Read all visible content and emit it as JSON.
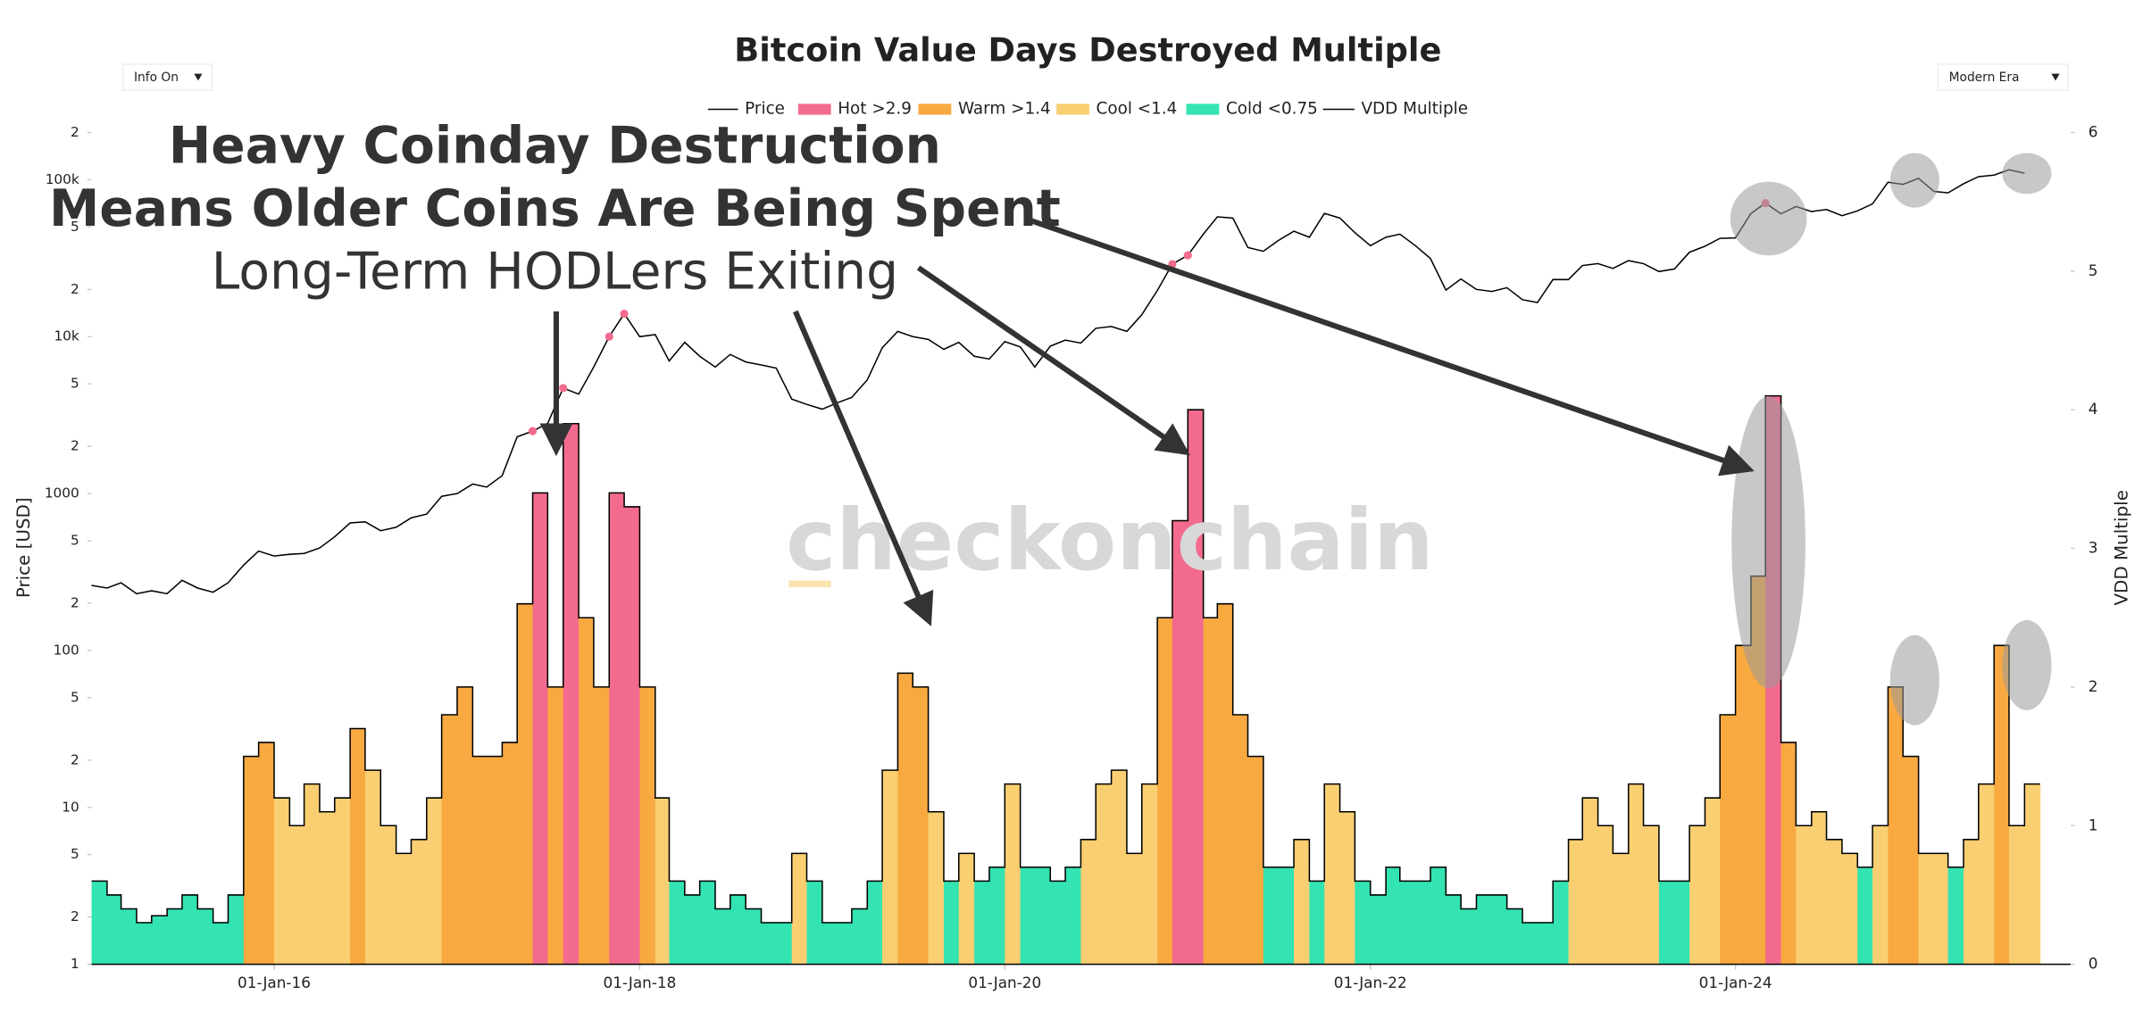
{
  "chart_data": {
    "type": "bar-line",
    "title": "Bitcoin Value Days Destroyed Multiple",
    "controls": [
      "Info On",
      "Modern Era"
    ],
    "annotations": [
      "Heavy Coinday Destruction",
      "Means Older Coins Are Being Spent",
      "Long-Term HODLers Exiting"
    ],
    "watermark": "checkonchain",
    "ylabel": "Price [USD]",
    "y2label": "VDD Multiple",
    "log_y": true,
    "xlim": [
      "2015-01-01",
      "2025-11-01"
    ],
    "xticks": [
      {
        "value": "2016-01-01",
        "label": "01-Jan-16"
      },
      {
        "value": "2018-01-01",
        "label": "01-Jan-18"
      },
      {
        "value": "2020-01-01",
        "label": "01-Jan-20"
      },
      {
        "value": "2022-01-01",
        "label": "01-Jan-22"
      },
      {
        "value": "2024-01-01",
        "label": "01-Jan-24"
      }
    ],
    "ylim": [
      1,
      200000
    ],
    "yticks": [
      1,
      2,
      5,
      10,
      {
        "value": 20,
        "label": "2"
      },
      {
        "value": 50,
        "label": "5"
      },
      100,
      {
        "value": 200,
        "label": "2"
      },
      {
        "value": 500,
        "label": "5"
      },
      1000,
      {
        "value": 2000,
        "label": "2"
      },
      {
        "value": 5000,
        "label": "5"
      },
      {
        "value": 10000,
        "label": "10k"
      },
      {
        "value": 20000,
        "label": "2"
      },
      {
        "value": 50000,
        "label": "5"
      },
      {
        "value": 100000,
        "label": "100k"
      },
      {
        "value": 200000,
        "label": "2"
      }
    ],
    "y2lim": [
      0,
      6
    ],
    "y2ticks": [
      0,
      1,
      2,
      3,
      4,
      5,
      6
    ],
    "bands": [
      {
        "name": "Hot >2.9",
        "color": "#f26b8e",
        "threshold": 2.9
      },
      {
        "name": "Warm >1.4",
        "color": "#f8a940",
        "threshold": 1.4
      },
      {
        "name": "Cool <1.4",
        "color": "#f9cf72",
        "threshold": 0.75
      },
      {
        "name": "Cold <0.75",
        "color": "#33e3b1",
        "threshold": 0
      }
    ],
    "x": [
      "2015-01-01",
      "2015-02-01",
      "2015-03-01",
      "2015-04-01",
      "2015-05-01",
      "2015-06-01",
      "2015-07-01",
      "2015-08-01",
      "2015-09-01",
      "2015-10-01",
      "2015-11-01",
      "2015-12-01",
      "2016-01-01",
      "2016-02-01",
      "2016-03-01",
      "2016-04-01",
      "2016-05-01",
      "2016-06-01",
      "2016-07-01",
      "2016-08-01",
      "2016-09-01",
      "2016-10-01",
      "2016-11-01",
      "2016-12-01",
      "2017-01-01",
      "2017-02-01",
      "2017-03-01",
      "2017-04-01",
      "2017-05-01",
      "2017-06-01",
      "2017-07-01",
      "2017-08-01",
      "2017-09-01",
      "2017-10-01",
      "2017-11-01",
      "2017-12-01",
      "2018-01-01",
      "2018-02-01",
      "2018-03-01",
      "2018-04-01",
      "2018-05-01",
      "2018-06-01",
      "2018-07-01",
      "2018-08-01",
      "2018-09-01",
      "2018-10-01",
      "2018-11-01",
      "2018-12-01",
      "2019-01-01",
      "2019-02-01",
      "2019-03-01",
      "2019-04-01",
      "2019-05-01",
      "2019-06-01",
      "2019-07-01",
      "2019-08-01",
      "2019-09-01",
      "2019-10-01",
      "2019-11-01",
      "2019-12-01",
      "2020-01-01",
      "2020-02-01",
      "2020-03-01",
      "2020-04-01",
      "2020-05-01",
      "2020-06-01",
      "2020-07-01",
      "2020-08-01",
      "2020-09-01",
      "2020-10-01",
      "2020-11-01",
      "2020-12-01",
      "2021-01-01",
      "2021-02-01",
      "2021-03-01",
      "2021-04-01",
      "2021-05-01",
      "2021-06-01",
      "2021-07-01",
      "2021-08-01",
      "2021-09-01",
      "2021-10-01",
      "2021-11-01",
      "2021-12-01",
      "2022-01-01",
      "2022-02-01",
      "2022-03-01",
      "2022-04-01",
      "2022-05-01",
      "2022-06-01",
      "2022-07-01",
      "2022-08-01",
      "2022-09-01",
      "2022-10-01",
      "2022-11-01",
      "2022-12-01",
      "2023-01-01",
      "2023-02-01",
      "2023-03-01",
      "2023-04-01",
      "2023-05-01",
      "2023-06-01",
      "2023-07-01",
      "2023-08-01",
      "2023-09-01",
      "2023-10-01",
      "2023-11-01",
      "2023-12-01",
      "2024-01-01",
      "2024-02-01",
      "2024-03-01",
      "2024-04-01",
      "2024-05-01",
      "2024-06-01",
      "2024-07-01",
      "2024-08-01",
      "2024-09-01",
      "2024-10-01",
      "2024-11-01",
      "2024-12-01",
      "2025-01-01",
      "2025-02-01",
      "2025-03-01",
      "2025-04-01",
      "2025-05-01",
      "2025-06-01",
      "2025-07-01",
      "2025-08-01"
    ],
    "series": [
      {
        "name": "Price",
        "color": "#000000",
        "axis": "y",
        "values": [
          260,
          250,
          270,
          230,
          240,
          230,
          280,
          250,
          235,
          270,
          350,
          430,
          400,
          410,
          415,
          450,
          530,
          650,
          660,
          580,
          610,
          700,
          740,
          960,
          1000,
          1150,
          1100,
          1300,
          2300,
          2500,
          2800,
          4700,
          4300,
          6400,
          10000,
          14000,
          10000,
          10300,
          7000,
          9200,
          7500,
          6400,
          7700,
          6900,
          6600,
          6300,
          4000,
          3700,
          3450,
          3800,
          4100,
          5300,
          8500,
          10800,
          10000,
          9600,
          8300,
          9200,
          7500,
          7200,
          9300,
          8600,
          6400,
          8700,
          9500,
          9100,
          11300,
          11600,
          10800,
          13800,
          19700,
          29000,
          33000,
          45000,
          58000,
          57000,
          37000,
          35000,
          41000,
          47000,
          43000,
          61000,
          57000,
          46000,
          38000,
          43000,
          45000,
          38000,
          31500,
          19800,
          23300,
          20000,
          19400,
          20500,
          17200,
          16500,
          23100,
          23100,
          28400,
          29200,
          27200,
          30500,
          29200,
          26000,
          27000,
          34500,
          37700,
          42300,
          42600,
          61000,
          71000,
          60600,
          67500,
          62700,
          64600,
          59000,
          63300,
          70200,
          96400,
          93400,
          102000,
          84300,
          82500,
          94200,
          104600,
          107000,
          115700,
          110000
        ]
      },
      {
        "name": "VDD Multiple",
        "color": "#000000",
        "axis": "y2",
        "values": [
          0.6,
          0.5,
          0.4,
          0.3,
          0.35,
          0.4,
          0.5,
          0.4,
          0.3,
          0.5,
          1.5,
          1.6,
          1.2,
          1.0,
          1.3,
          1.1,
          1.2,
          1.7,
          1.4,
          1.0,
          0.8,
          0.9,
          1.2,
          1.8,
          2.0,
          1.5,
          1.5,
          1.6,
          2.6,
          3.4,
          2.0,
          3.9,
          2.5,
          2.0,
          3.4,
          3.3,
          2.0,
          1.2,
          0.6,
          0.5,
          0.6,
          0.4,
          0.5,
          0.4,
          0.3,
          0.3,
          0.8,
          0.6,
          0.3,
          0.3,
          0.4,
          0.6,
          1.4,
          2.1,
          2.0,
          1.1,
          0.6,
          0.8,
          0.6,
          0.7,
          1.3,
          0.7,
          0.7,
          0.6,
          0.7,
          0.9,
          1.3,
          1.4,
          0.8,
          1.3,
          2.5,
          3.2,
          4.0,
          2.5,
          2.6,
          1.8,
          1.5,
          0.7,
          0.7,
          0.9,
          0.6,
          1.3,
          1.1,
          0.6,
          0.5,
          0.7,
          0.6,
          0.6,
          0.7,
          0.5,
          0.4,
          0.5,
          0.5,
          0.4,
          0.3,
          0.3,
          0.6,
          0.9,
          1.2,
          1.0,
          0.8,
          1.3,
          1.0,
          0.6,
          0.6,
          1.0,
          1.2,
          1.8,
          2.3,
          2.8,
          4.1,
          1.6,
          1.0,
          1.1,
          0.9,
          0.8,
          0.7,
          1.0,
          2.0,
          1.5,
          0.8,
          0.8,
          0.7,
          0.9,
          1.3,
          2.3,
          1.0,
          1.3
        ]
      }
    ]
  }
}
